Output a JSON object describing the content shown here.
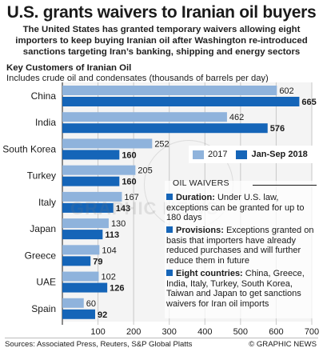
{
  "header": {
    "title": "U.S. grants waivers to Iranian oil buyers",
    "subtitle": "The United States has granted temporary waivers allowing eight importers to keep buying Iranian oil after Washington re-introduced sanctions targeting Iran’s banking, shipping and energy sectors"
  },
  "section": {
    "heading": "Key Customers of Iranian Oil",
    "subheading": "Includes crude oil and condensates (thousands of barrels per day)"
  },
  "chart_data": {
    "type": "bar",
    "orientation": "horizontal",
    "categories": [
      "China",
      "India",
      "South Korea",
      "Turkey",
      "Italy",
      "Japan",
      "Greece",
      "UAE",
      "Spain"
    ],
    "series": [
      {
        "name": "2017",
        "values": [
          602,
          462,
          252,
          205,
          167,
          130,
          104,
          102,
          60
        ]
      },
      {
        "name": "Jan-Sep 2018",
        "values": [
          665,
          576,
          160,
          160,
          143,
          113,
          79,
          126,
          92
        ]
      }
    ],
    "xlim": [
      0,
      700
    ],
    "xticks": [
      100,
      200,
      300,
      400,
      500,
      600,
      700
    ],
    "grid": true,
    "legend": "right",
    "colors": {
      "2017": "#8fb3dc",
      "Jan-Sep 2018": "#1565b8"
    }
  },
  "legend": {
    "series_a": "2017",
    "series_b": "Jan-Sep 2018"
  },
  "info_box": {
    "heading": "OIL WAIVERS",
    "items": [
      {
        "label": "Duration:",
        "text": "Under U.S. law, exceptions can be granted for up to 180 days"
      },
      {
        "label": "Provisions:",
        "text": "Exceptions granted on basis that importers have already reduced purchases and will further reduce them in future"
      },
      {
        "label": "Eight countries:",
        "text": "China, Greece, India, Italy, Turkey, South Korea, Taiwan and Japan to get sanctions waivers for Iran oil imports"
      }
    ]
  },
  "footer": {
    "source": "Sources: Associated Press, Reuters, S&P Global Platts",
    "credit": "© GRAPHIC NEWS"
  },
  "watermark": {
    "text": "GRAPHIC NEWS"
  }
}
